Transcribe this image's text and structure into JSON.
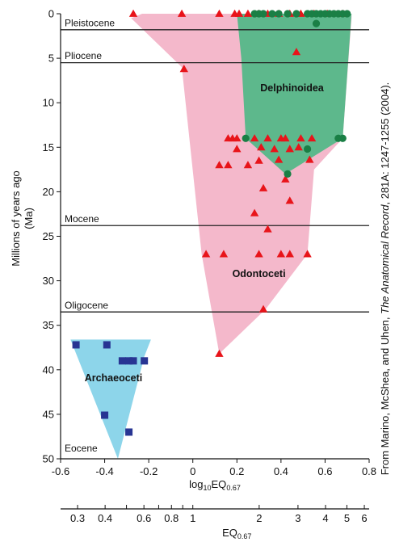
{
  "chart_data": {
    "type": "scatter",
    "xlabel": "log10 EQ0.67",
    "xlabel_parts": {
      "pre": "log",
      "sub1": "10",
      "mid": "EQ",
      "sub2": "0.67"
    },
    "ylabel_line1": "Millions of years ago",
    "ylabel_line2": "(Ma)",
    "secondary_xlabel": {
      "pre": "EQ",
      "sub": "0.67"
    },
    "xlim": [
      -0.6,
      0.8
    ],
    "ylim": [
      50,
      0
    ],
    "x_ticks": [
      -0.6,
      -0.4,
      -0.2,
      0,
      0.2,
      0.4,
      0.6,
      0.8
    ],
    "x_tick_labels": [
      "-0.6",
      "-0.4",
      "-0.2",
      "0",
      "0.2",
      "0.4",
      "0.6",
      "0.8"
    ],
    "y_ticks": [
      0,
      5,
      10,
      15,
      20,
      25,
      30,
      35,
      40,
      45,
      50
    ],
    "y_tick_labels": [
      "0",
      "5",
      "10",
      "15",
      "20",
      "25",
      "30",
      "35",
      "40",
      "45",
      "50"
    ],
    "secondary_axis": {
      "scale": "log",
      "ticks": [
        0.3,
        0.4,
        0.5,
        0.6,
        0.7,
        0.8,
        0.9,
        1,
        2,
        3,
        4,
        5,
        6
      ],
      "labeled": [
        {
          "v": 0.3,
          "label": "0.3"
        },
        {
          "v": 0.4,
          "label": "0.4"
        },
        {
          "v": 0.6,
          "label": "0.6"
        },
        {
          "v": 0.8,
          "label": "0.8"
        },
        {
          "v": 1,
          "label": "1"
        },
        {
          "v": 2,
          "label": "2"
        },
        {
          "v": 3,
          "label": "3"
        },
        {
          "v": 4,
          "label": "4"
        },
        {
          "v": 5,
          "label": "5"
        },
        {
          "v": 6,
          "label": "6"
        }
      ]
    },
    "epochs": [
      {
        "name": "Pleistocene",
        "boundary": 1.8,
        "label_y": 1.4
      },
      {
        "name": "Pliocene",
        "boundary": 5.5,
        "label_y": 5.1
      },
      {
        "name": "Mocene",
        "boundary": 23.8,
        "label_y": 23.4
      },
      {
        "name": "Oligocene",
        "boundary": 33.5,
        "label_y": 33.1
      },
      {
        "name": "Eocene",
        "boundary": null,
        "label_y": 49.2
      }
    ],
    "regions": [
      {
        "name": "Odontoceti",
        "color": "#f4b8cb",
        "label_pos": [
          0.3,
          29.6
        ],
        "polygon": [
          [
            -0.23,
            0
          ],
          [
            0.72,
            0
          ],
          [
            0.72,
            0.5
          ],
          [
            0.68,
            14
          ],
          [
            0.55,
            17.5
          ],
          [
            0.52,
            27
          ],
          [
            0.33,
            33.2
          ],
          [
            0.12,
            38.2
          ],
          [
            0.04,
            27
          ],
          [
            -0.05,
            6
          ],
          [
            -0.28,
            0.5
          ]
        ]
      },
      {
        "name": "Delphinoidea",
        "color": "#5db88c",
        "label_pos": [
          0.45,
          8.7
        ],
        "polygon": [
          [
            0.2,
            0
          ],
          [
            0.72,
            0
          ],
          [
            0.68,
            14
          ],
          [
            0.42,
            18
          ],
          [
            0.24,
            14
          ],
          [
            0.22,
            5
          ]
        ]
      },
      {
        "name": "Archaeoceti",
        "color": "#8dd5ea",
        "label_pos": [
          -0.36,
          41.3
        ],
        "polygon": [
          [
            -0.555,
            36.6
          ],
          [
            -0.19,
            36.6
          ],
          [
            -0.22,
            38.5
          ],
          [
            -0.34,
            50
          ]
        ]
      }
    ],
    "series": [
      {
        "marker": "triangle",
        "color": "#e8141a",
        "points": [
          [
            -0.27,
            0
          ],
          [
            -0.05,
            0
          ],
          [
            0.12,
            0
          ],
          [
            0.19,
            0
          ],
          [
            0.21,
            0
          ],
          [
            0.25,
            0
          ],
          [
            0.3,
            0
          ],
          [
            0.34,
            0
          ],
          [
            0.39,
            0
          ],
          [
            0.44,
            0
          ],
          [
            0.49,
            0
          ],
          [
            0.55,
            0
          ],
          [
            0.61,
            0
          ],
          [
            0.68,
            0
          ],
          [
            -0.04,
            6.2
          ],
          [
            0.47,
            4.3
          ],
          [
            0.16,
            14
          ],
          [
            0.18,
            14
          ],
          [
            0.2,
            14
          ],
          [
            0.28,
            14
          ],
          [
            0.34,
            14
          ],
          [
            0.4,
            14
          ],
          [
            0.42,
            14
          ],
          [
            0.49,
            14
          ],
          [
            0.54,
            14
          ],
          [
            0.31,
            15
          ],
          [
            0.48,
            15
          ],
          [
            0.2,
            15.2
          ],
          [
            0.37,
            15.2
          ],
          [
            0.44,
            15.2
          ],
          [
            0.39,
            16.4
          ],
          [
            0.53,
            16.4
          ],
          [
            0.3,
            16.5
          ],
          [
            0.12,
            17
          ],
          [
            0.16,
            17
          ],
          [
            0.25,
            17
          ],
          [
            0.42,
            18.6
          ],
          [
            0.32,
            19.6
          ],
          [
            0.44,
            21
          ],
          [
            0.28,
            22.4
          ],
          [
            0.34,
            24.2
          ],
          [
            0.06,
            27
          ],
          [
            0.14,
            27
          ],
          [
            0.3,
            27
          ],
          [
            0.4,
            27
          ],
          [
            0.44,
            27
          ],
          [
            0.52,
            27
          ],
          [
            0.32,
            33.2
          ],
          [
            0.12,
            38.2
          ]
        ]
      },
      {
        "marker": "circle",
        "color": "#1a7f45",
        "points": [
          [
            0.28,
            0
          ],
          [
            0.3,
            0
          ],
          [
            0.32,
            0
          ],
          [
            0.36,
            0
          ],
          [
            0.39,
            0
          ],
          [
            0.43,
            0
          ],
          [
            0.47,
            0
          ],
          [
            0.52,
            0
          ],
          [
            0.54,
            0
          ],
          [
            0.56,
            0
          ],
          [
            0.58,
            0
          ],
          [
            0.6,
            0
          ],
          [
            0.62,
            0
          ],
          [
            0.64,
            0
          ],
          [
            0.66,
            0
          ],
          [
            0.68,
            0
          ],
          [
            0.7,
            0
          ],
          [
            0.56,
            1.1
          ],
          [
            0.24,
            14
          ],
          [
            0.66,
            14
          ],
          [
            0.68,
            14
          ],
          [
            0.52,
            15.2
          ],
          [
            0.43,
            18
          ]
        ]
      },
      {
        "marker": "square",
        "color": "#283593",
        "points": [
          [
            -0.53,
            37.2
          ],
          [
            -0.39,
            37.2
          ],
          [
            -0.32,
            39
          ],
          [
            -0.29,
            39
          ],
          [
            -0.27,
            39
          ],
          [
            -0.22,
            39
          ],
          [
            -0.4,
            45.1
          ],
          [
            -0.29,
            47
          ]
        ]
      }
    ]
  },
  "credit": {
    "pre": "From Marino, McShea, and Uhen, ",
    "journal": "The Anatomical Record",
    "post": ", 281A: 1247-1255 (2004)."
  }
}
